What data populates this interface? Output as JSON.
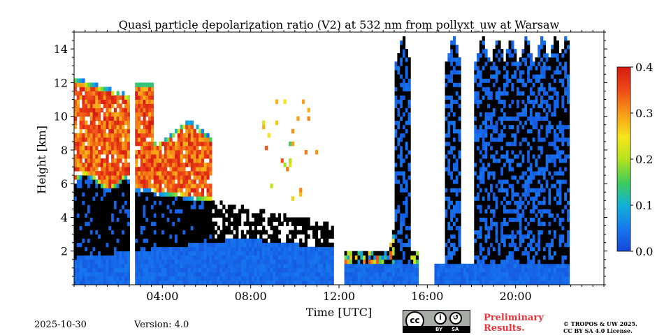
{
  "chart_data": {
    "type": "heatmap",
    "title": "Quasi particle depolarization ratio (V2) at 532 nm from pollyxt_uw at Warsaw",
    "xlabel": "Time [UTC]",
    "ylabel": "Height [km]",
    "xlim_hours": [
      0,
      24
    ],
    "ylim_km": [
      0,
      15
    ],
    "x_ticks": [
      "04:00",
      "08:00",
      "12:00",
      "16:00",
      "20:00"
    ],
    "x_tick_hours": [
      4,
      8,
      12,
      16,
      20
    ],
    "y_ticks": [
      2,
      4,
      6,
      8,
      10,
      12,
      14
    ],
    "colorbar": {
      "min": 0.0,
      "max": 0.4,
      "ticks": [
        "0.0",
        "0.1",
        "0.2",
        "0.3",
        "0.4"
      ]
    },
    "data_gaps_hours": [
      [
        2.55,
        2.72
      ],
      [
        11.8,
        12.2
      ],
      [
        15.6,
        16.3
      ],
      [
        22.5,
        24.0
      ]
    ],
    "colormap": [
      "#1646d8",
      "#1677ef",
      "#11b2d8",
      "#3ccb5c",
      "#b6e31c",
      "#f7e51a",
      "#f79a17",
      "#ee4716",
      "#d61a12"
    ],
    "no_signal_color": "#000000"
  },
  "footer": {
    "date": "2025-10-30",
    "version": "Version: 4.0",
    "preliminary_line1": "Preliminary",
    "preliminary_line2": "Results.",
    "copyright_line1": "© TROPOS & UW 2025.",
    "copyright_line2": "CC BY SA 4.0 License.",
    "license_by": "BY",
    "license_sa": "SA",
    "license_cc": "cc"
  }
}
